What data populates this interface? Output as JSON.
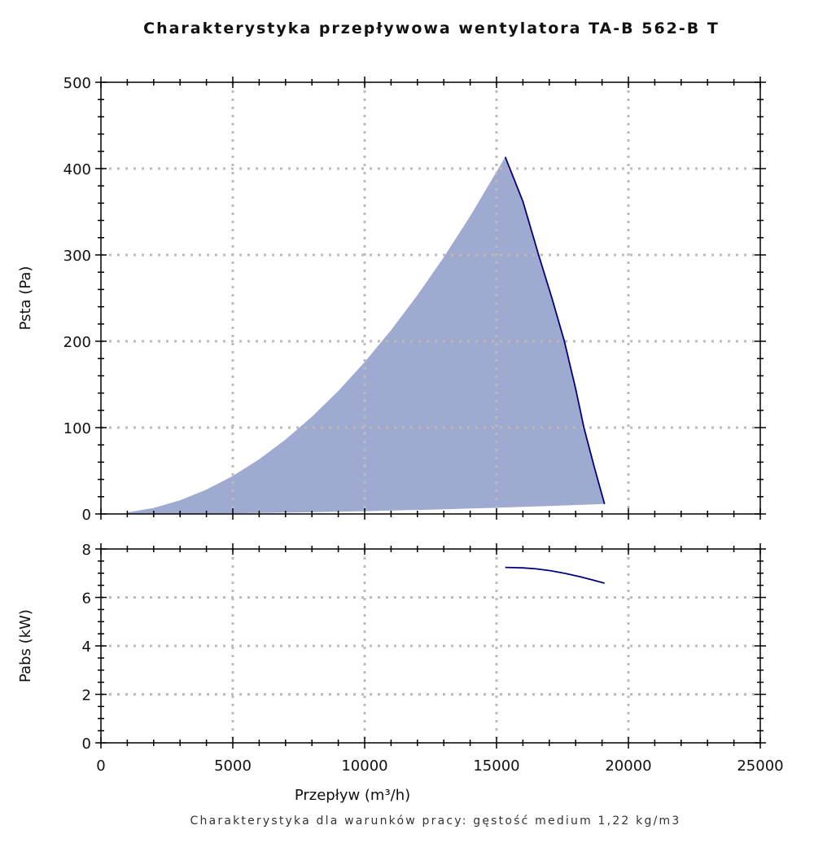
{
  "chart_data": [
    {
      "type": "area",
      "title": "Charakterystyka przepływowa wentylatora TA-B 562-B T",
      "xlabel": "",
      "ylabel": "Psta (Pa)",
      "xlim": [
        0,
        25000
      ],
      "ylim": [
        0,
        500
      ],
      "xticks": [
        0,
        5000,
        10000,
        15000,
        20000,
        25000
      ],
      "yticks": [
        0,
        100,
        200,
        300,
        400,
        500
      ],
      "yticklabels": [
        "0",
        "100",
        "200",
        "300",
        "400",
        "500"
      ],
      "grid": true,
      "fill_color": "#9eaad0",
      "line_color": "#000080",
      "upper_boundary": {
        "x": [
          1000,
          2000,
          3000,
          4000,
          5000,
          6000,
          7000,
          8000,
          9000,
          10000,
          11000,
          12000,
          13000,
          14000,
          15330
        ],
        "y": [
          1.8,
          7.0,
          15.8,
          28.2,
          44.0,
          63.3,
          86.2,
          112.6,
          142.5,
          176.0,
          212.9,
          253.4,
          297.4,
          344.9,
          413.5
        ]
      },
      "fan_curve": {
        "x": [
          15330,
          16000,
          16595,
          17100,
          17572,
          18000,
          18313,
          18700,
          19095
        ],
        "y": [
          413.5,
          362,
          300,
          250,
          200,
          145,
          100,
          55,
          11.6
        ]
      },
      "lower_boundary": {
        "x": [
          19095,
          17000,
          15000,
          12500,
          10000,
          7500,
          5000,
          3000,
          1000
        ],
        "y": [
          11.6,
          9.2,
          7.2,
          5.0,
          3.2,
          1.8,
          0.8,
          0.3,
          0.0
        ]
      }
    },
    {
      "type": "line",
      "xlabel": "Przepływ (m³/h)",
      "ylabel": "Pabs (kW)",
      "xlim": [
        0,
        25000
      ],
      "ylim": [
        0,
        8
      ],
      "xticks": [
        0,
        5000,
        10000,
        15000,
        20000,
        25000
      ],
      "xticklabels": [
        "0",
        "5000",
        "10000",
        "15000",
        "20000",
        "25000"
      ],
      "yticks": [
        0,
        2,
        4,
        6,
        8
      ],
      "yticklabels": [
        "0",
        "2",
        "4",
        "6",
        "8"
      ],
      "grid": true,
      "line_color": "#000080",
      "series": [
        {
          "x": [
            15330,
            16000,
            16500,
            17060,
            17600,
            18190,
            18650,
            19095
          ],
          "y": [
            7.24,
            7.22,
            7.18,
            7.1,
            6.99,
            6.85,
            6.72,
            6.59
          ]
        }
      ]
    }
  ],
  "footer": "Charakterystyka dla warunków pracy: gęstość medium 1,22 kg/m3"
}
